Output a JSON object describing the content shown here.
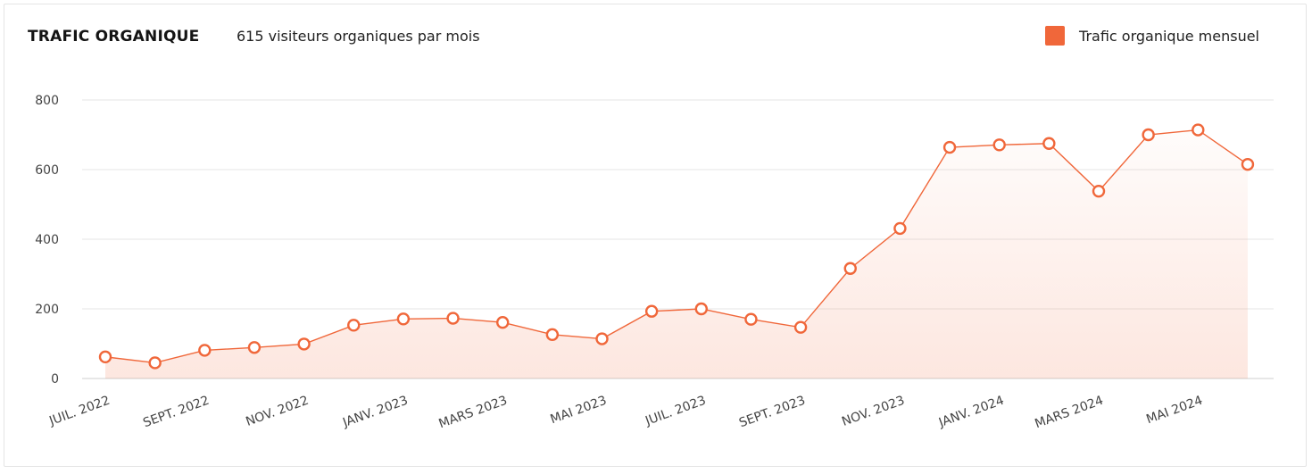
{
  "header": {
    "title": "TRAFIC ORGANIQUE",
    "subtitle": "615 visiteurs organiques par mois",
    "legend_label": "Trafic organique mensuel"
  },
  "colors": {
    "accent": "#F0673A",
    "grid": "#e6e6e6",
    "axis": "#cfcfcf"
  },
  "chart_data": {
    "type": "area",
    "title": "TRAFIC ORGANIQUE",
    "xlabel": "",
    "ylabel": "",
    "ylim": [
      0,
      800
    ],
    "yticks": [
      0,
      200,
      400,
      600,
      800
    ],
    "grid": true,
    "legend_position": "top-right",
    "x": [
      "juil. 2022",
      "août 2022",
      "sept. 2022",
      "oct. 2022",
      "nov. 2022",
      "déc. 2022",
      "janv. 2023",
      "févr. 2023",
      "mars 2023",
      "avr. 2023",
      "mai 2023",
      "juin 2023",
      "juil. 2023",
      "août 2023",
      "sept. 2023",
      "oct. 2023",
      "nov. 2023",
      "déc. 2023",
      "janv. 2024",
      "févr. 2024",
      "mars 2024",
      "avr. 2024",
      "mai 2024",
      "juin 2024"
    ],
    "x_tick_labels": [
      "JUIL. 2022",
      "SEPT. 2022",
      "NOV. 2022",
      "JANV. 2023",
      "MARS 2023",
      "MAI 2023",
      "JUIL. 2023",
      "SEPT. 2023",
      "NOV. 2023",
      "JANV. 2024",
      "MARS 2024",
      "MAI 2024"
    ],
    "series": [
      {
        "name": "Trafic organique mensuel",
        "values": [
          62,
          45,
          81,
          89,
          99,
          153,
          171,
          173,
          161,
          126,
          114,
          193,
          200,
          170,
          147,
          316,
          431,
          664,
          671,
          675,
          538,
          700,
          714,
          615
        ]
      }
    ]
  }
}
